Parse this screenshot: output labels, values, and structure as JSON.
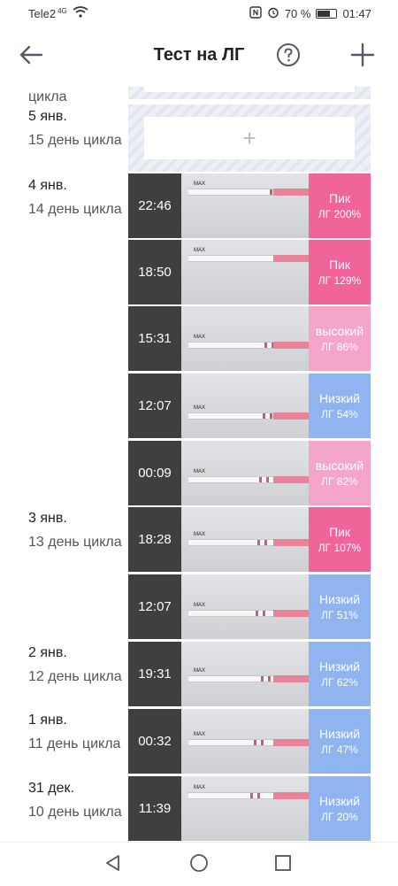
{
  "status_bar": {
    "carrier": "Tele2",
    "network": "4G",
    "battery": "70 %",
    "battery_level": 0.7,
    "time": "01:47",
    "icons": [
      "wifi-icon",
      "nfc-icon",
      "alarm-icon",
      "battery-icon"
    ]
  },
  "toolbar": {
    "title": "Тест на ЛГ",
    "icons": [
      "back-arrow-icon",
      "help-icon",
      "add-icon"
    ]
  },
  "colors": {
    "peak": "#f0649a",
    "high": "#f4a6c8",
    "low": "#8fb4f0",
    "time_bg": "#3f3f3f"
  },
  "days": [
    {
      "date": "",
      "cycle": "цикла"
    },
    {
      "date": "5 янв.",
      "cycle": "15 день цикла"
    },
    {
      "date": "4 янв.",
      "cycle": "14 день цикла"
    },
    {
      "date": "3 янв.",
      "cycle": "13 день цикла"
    },
    {
      "date": "2 янв.",
      "cycle": "12 день цикла"
    },
    {
      "date": "1 янв.",
      "cycle": "11 день цикла"
    },
    {
      "date": "31 дек.",
      "cycle": "10 день цикла"
    }
  ],
  "add_slot": {
    "icon": "plus-icon",
    "label": "+"
  },
  "tests": [
    {
      "time": "22:46",
      "status": "Пик",
      "percent": "ЛГ 200%",
      "level": "peak",
      "strip_marker": "MAX"
    },
    {
      "time": "18:50",
      "status": "Пик",
      "percent": "ЛГ 129%",
      "level": "peak",
      "strip_marker": "MAX"
    },
    {
      "time": "15:31",
      "status": "высокий",
      "percent": "ЛГ 86%",
      "level": "high",
      "strip_marker": "MAX"
    },
    {
      "time": "12:07",
      "status": "Низкий",
      "percent": "ЛГ 54%",
      "level": "low",
      "strip_marker": "MAX"
    },
    {
      "time": "00:09",
      "status": "высокий",
      "percent": "ЛГ 82%",
      "level": "high",
      "strip_marker": "MAX"
    },
    {
      "time": "18:28",
      "status": "Пик",
      "percent": "ЛГ 107%",
      "level": "peak",
      "strip_marker": "MAX"
    },
    {
      "time": "12:07",
      "status": "Низкий",
      "percent": "ЛГ 51%",
      "level": "low",
      "strip_marker": "MAX"
    },
    {
      "time": "19:31",
      "status": "Низкий",
      "percent": "ЛГ 62%",
      "level": "low",
      "strip_marker": "MAX"
    },
    {
      "time": "00:32",
      "status": "Низкий",
      "percent": "ЛГ 47%",
      "level": "low",
      "strip_marker": "MAX"
    },
    {
      "time": "11:39",
      "status": "Низкий",
      "percent": "ЛГ 20%",
      "level": "low",
      "strip_marker": "MAX"
    }
  ],
  "nav": {
    "icons": [
      "back-triangle-icon",
      "home-circle-icon",
      "recents-square-icon"
    ]
  }
}
